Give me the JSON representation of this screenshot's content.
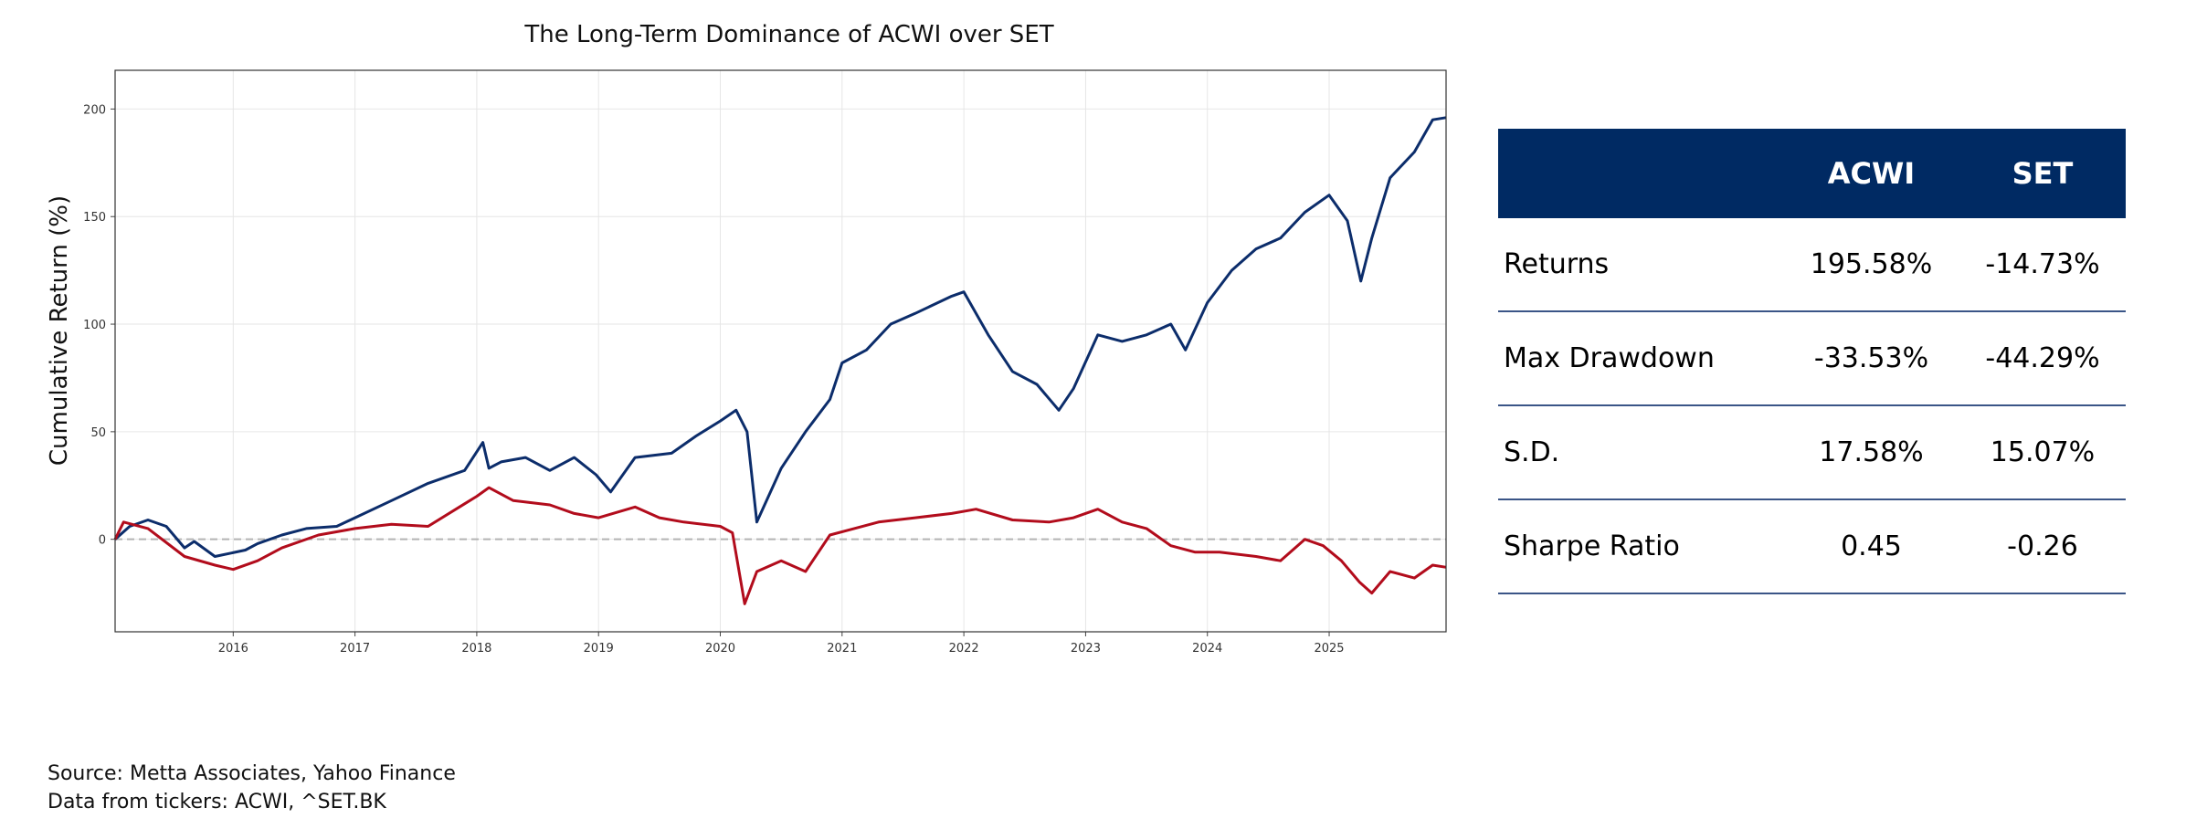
{
  "chart_data": {
    "type": "line",
    "title": "The Long-Term Dominance of ACWI over SET",
    "xlabel": "",
    "ylabel": "Cumulative Return (%)",
    "xlim": [
      2015.03,
      2025.96
    ],
    "ylim": [
      -43,
      218
    ],
    "x_ticks": [
      "2016",
      "2017",
      "2018",
      "2019",
      "2020",
      "2021",
      "2022",
      "2023",
      "2024",
      "2025"
    ],
    "y_ticks": [
      0,
      50,
      100,
      150,
      200
    ],
    "grid": true,
    "zero_line": true,
    "series": [
      {
        "color": "#0c2d6b",
        "x": [
          2015.03,
          2015.15,
          2015.3,
          2015.45,
          2015.6,
          2015.68,
          2015.85,
          2016.1,
          2016.2,
          2016.4,
          2016.6,
          2016.85,
          2017.0,
          2017.3,
          2017.6,
          2017.9,
          2018.05,
          2018.1,
          2018.2,
          2018.4,
          2018.6,
          2018.8,
          2018.98,
          2019.1,
          2019.3,
          2019.6,
          2019.8,
          2020.0,
          2020.13,
          2020.22,
          2020.3,
          2020.5,
          2020.7,
          2020.9,
          2021.0,
          2021.2,
          2021.4,
          2021.6,
          2021.9,
          2022.0,
          2022.2,
          2022.4,
          2022.6,
          2022.78,
          2022.9,
          2023.1,
          2023.3,
          2023.5,
          2023.7,
          2023.82,
          2024.0,
          2024.2,
          2024.4,
          2024.6,
          2024.8,
          2025.0,
          2025.15,
          2025.26,
          2025.35,
          2025.5,
          2025.7,
          2025.85,
          2025.96
        ],
        "values": [
          0,
          6,
          9,
          6,
          -4,
          -1,
          -8,
          -5,
          -2,
          2,
          5,
          6,
          10,
          18,
          26,
          32,
          45,
          33,
          36,
          38,
          32,
          38,
          30,
          22,
          38,
          40,
          48,
          55,
          60,
          50,
          8,
          33,
          50,
          65,
          82,
          88,
          100,
          105,
          113,
          115,
          95,
          78,
          72,
          60,
          70,
          95,
          92,
          95,
          100,
          88,
          110,
          125,
          135,
          140,
          152,
          160,
          148,
          120,
          140,
          168,
          180,
          195,
          196
        ]
      },
      {
        "color": "#b20c1c",
        "x": [
          2015.03,
          2015.1,
          2015.3,
          2015.6,
          2015.85,
          2016.0,
          2016.2,
          2016.4,
          2016.7,
          2017.0,
          2017.3,
          2017.6,
          2018.0,
          2018.1,
          2018.3,
          2018.6,
          2018.8,
          2019.0,
          2019.3,
          2019.5,
          2019.7,
          2020.0,
          2020.1,
          2020.2,
          2020.3,
          2020.5,
          2020.7,
          2020.9,
          2021.1,
          2021.3,
          2021.6,
          2021.9,
          2022.1,
          2022.4,
          2022.7,
          2022.9,
          2023.1,
          2023.3,
          2023.5,
          2023.7,
          2023.9,
          2024.1,
          2024.4,
          2024.6,
          2024.8,
          2024.95,
          2025.1,
          2025.25,
          2025.35,
          2025.5,
          2025.7,
          2025.85,
          2025.96
        ],
        "values": [
          0,
          8,
          5,
          -8,
          -12,
          -14,
          -10,
          -4,
          2,
          5,
          7,
          6,
          20,
          24,
          18,
          16,
          12,
          10,
          15,
          10,
          8,
          6,
          3,
          -30,
          -15,
          -10,
          -15,
          2,
          5,
          8,
          10,
          12,
          14,
          9,
          8,
          10,
          14,
          8,
          5,
          -3,
          -6,
          -6,
          -8,
          -10,
          0,
          -3,
          -10,
          -20,
          -25,
          -15,
          -18,
          -12,
          -13
        ]
      }
    ]
  },
  "stats_table": {
    "headers": [
      "",
      "ACWI",
      "SET"
    ],
    "rows": [
      {
        "metric": "Returns",
        "acwi": "195.58%",
        "set": "-14.73%"
      },
      {
        "metric": "Max Drawdown",
        "acwi": "-33.53%",
        "set": "-44.29%"
      },
      {
        "metric": "S.D.",
        "acwi": "17.58%",
        "set": "15.07%"
      },
      {
        "metric": "Sharpe Ratio",
        "acwi": "0.45",
        "set": "-0.26"
      }
    ]
  },
  "source": {
    "line1": "Source: Metta Associates, Yahoo Finance",
    "line2": "Data from tickers: ACWI, ^SET.BK"
  }
}
